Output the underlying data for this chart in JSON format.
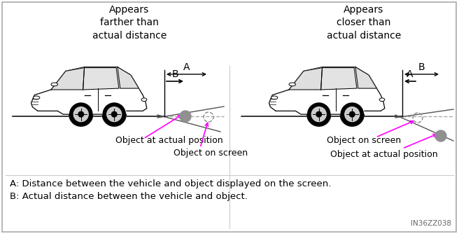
{
  "bg_color": "#ffffff",
  "border_color": "#aaaaaa",
  "title_left": "Appears\nfarther than\nactual distance",
  "title_right": "Appears\ncloser than\nactual distance",
  "label_A": "A",
  "label_B": "B",
  "magenta_color": "#FF00FF",
  "object_fill_color": "#909090",
  "legend_A": "A: Distance between the vehicle and object displayed on the screen.",
  "legend_B": "B: Actual distance between the vehicle and object.",
  "annotation_actual_left": "Object at actual position",
  "annotation_screen_left": "Object on screen",
  "annotation_screen_right": "Object on screen",
  "annotation_actual_right": "Object at actual position",
  "figure_id": "IN36ZZ038",
  "font_size_title": 10,
  "font_size_label": 9,
  "font_size_legend": 9.5
}
